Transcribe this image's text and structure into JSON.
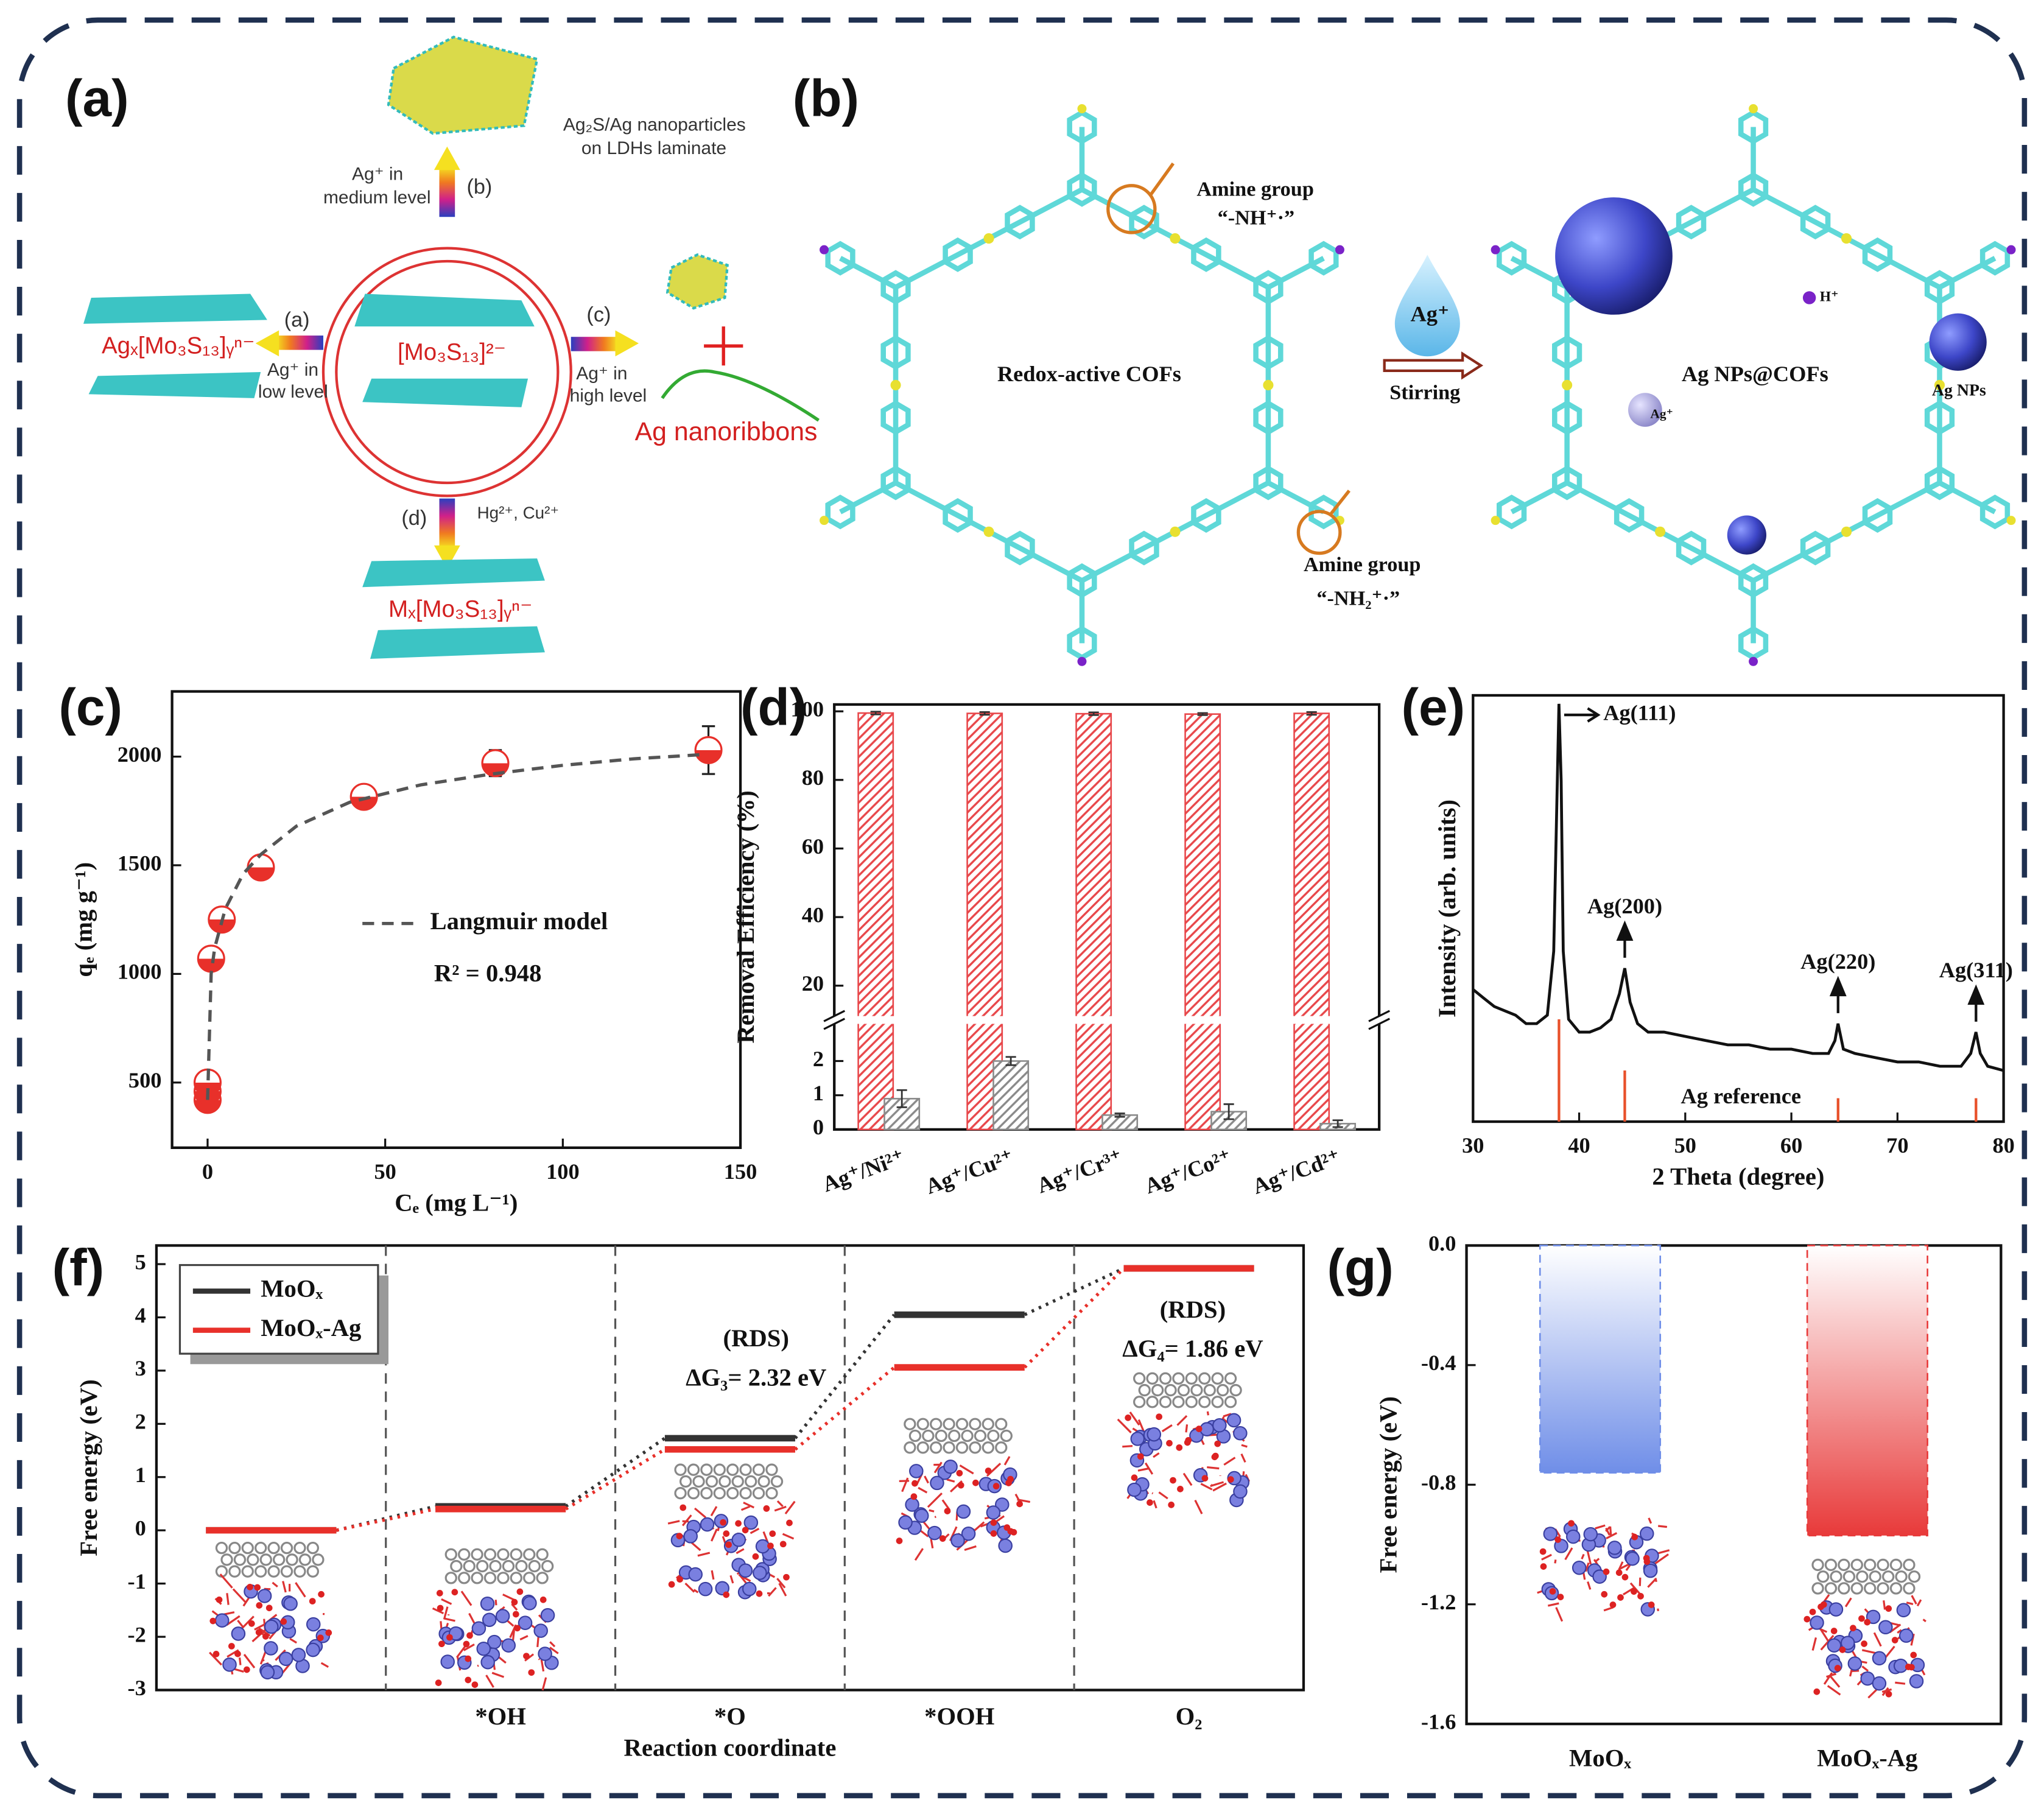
{
  "panel_a": {
    "label": "(a)",
    "product_b": [
      "Ag₂S/Ag nanoparticles",
      "on LDHs laminate"
    ],
    "route_b": {
      "tag": "(b)",
      "condition": [
        "Ag⁺ in",
        "medium level"
      ]
    },
    "route_a": {
      "tag": "(a)",
      "condition": [
        "Ag⁺ in",
        "low level"
      ]
    },
    "route_c": {
      "tag": "(c)",
      "condition": [
        "Ag⁺ in",
        "high level"
      ]
    },
    "route_d": {
      "tag": "(d)",
      "condition": [
        "Hg²⁺, Cu²⁺"
      ]
    },
    "center": "[Mo₃S₁₃]²⁻",
    "product_a": "Agₓ[Mo₃S₁₃]ᵧⁿ⁻",
    "product_c": "Ag nanoribbons",
    "product_d": "Mₓ[Mo₃S₁₃]ᵧⁿ⁻"
  },
  "panel_b": {
    "label": "(b)",
    "amine_top": [
      "Amine group",
      "“-NH⁺·”"
    ],
    "left_title": "Redox-active COFs",
    "reagent": "Ag⁺",
    "step": "Stirring",
    "right_title": "Ag NPs@COFs",
    "ion_h": "H⁺",
    "ion_ag": "Ag⁺",
    "particles": "Ag NPs",
    "amine_bottom": [
      "Amine group",
      "“-NH₂⁺·”"
    ]
  },
  "chart_data": [
    {
      "type": "scatter",
      "label": "(c)",
      "xlabel": "Cₑ (mg L⁻¹)",
      "ylabel": "qₑ (mg g⁻¹)",
      "xlim": [
        -10,
        150
      ],
      "ylim": [
        200,
        2300
      ],
      "xticks": [
        0,
        50,
        100,
        150
      ],
      "yticks": [
        500,
        1000,
        1500,
        2000
      ],
      "series": [
        {
          "color": "#e8302a",
          "x": [
            0,
            0,
            0,
            1,
            4,
            15,
            44,
            81,
            141
          ],
          "values": [
            420,
            460,
            500,
            1070,
            1250,
            1490,
            1815,
            1970,
            2030
          ],
          "errors": [
            20,
            20,
            20,
            30,
            40,
            30,
            30,
            60,
            110
          ]
        },
        {
          "name": "Langmuir model",
          "style": "dashed",
          "color": "#555555",
          "x": [
            0,
            1,
            2,
            5,
            10,
            15,
            25,
            40,
            60,
            80,
            100,
            120,
            140
          ],
          "values": [
            420,
            1000,
            1120,
            1300,
            1460,
            1550,
            1680,
            1790,
            1870,
            1920,
            1960,
            1990,
            2010
          ]
        }
      ],
      "annotations": [
        "R² = 0.948"
      ]
    },
    {
      "type": "bar",
      "label": "(d)",
      "ylabel": "Removal Efficiency (%)",
      "categories": [
        "Ag⁺/Ni²⁺",
        "Ag⁺/Cu²⁺",
        "Ag⁺/Cr³⁺",
        "Ag⁺/Co²⁺",
        "Ag⁺/Cd²⁺"
      ],
      "ylim": [
        0,
        102
      ],
      "ybreak": [
        3.2,
        10
      ],
      "yticks": [
        0,
        1,
        2,
        20,
        40,
        60,
        80,
        100
      ],
      "series": [
        {
          "color": "#e8474a",
          "pattern": "hatch",
          "values": [
            99.5,
            99.4,
            99.3,
            99.2,
            99.4
          ],
          "errors": [
            0.4,
            0.4,
            0.4,
            0.3,
            0.4
          ]
        },
        {
          "color": "#8a8a8a",
          "pattern": "hatch",
          "values": [
            0.9,
            2.0,
            0.42,
            0.52,
            0.17
          ],
          "errors": [
            0.25,
            0.12,
            0.05,
            0.22,
            0.1
          ]
        }
      ]
    },
    {
      "type": "line",
      "label": "(e)",
      "xlabel": "2 Theta (degree)",
      "ylabel": "Intensity (arb. units)",
      "xlim": [
        30,
        80
      ],
      "ylim": [
        0,
        100
      ],
      "xticks": [
        30,
        40,
        50,
        60,
        70,
        80
      ],
      "series": [
        {
          "color": "#111111",
          "x": [
            30,
            31,
            32,
            33,
            34,
            35,
            36,
            37,
            37.6,
            38.1,
            38.3,
            38.5,
            39,
            40,
            41,
            42,
            43,
            43.8,
            44.3,
            44.8,
            45.5,
            46.5,
            48,
            50,
            52,
            54,
            56,
            58,
            60,
            62,
            63.5,
            64.1,
            64.4,
            64.9,
            66,
            68,
            70,
            72,
            74,
            76,
            76.9,
            77.4,
            77.8,
            78.5,
            80
          ],
          "values": [
            31,
            29,
            27,
            26,
            25,
            23,
            23,
            25,
            40,
            98,
            80,
            40,
            24,
            21,
            21,
            22,
            24,
            30,
            36,
            28,
            23,
            21,
            21,
            20,
            19,
            18,
            18,
            17,
            17,
            16,
            16,
            19,
            23,
            17,
            16,
            15,
            14,
            14,
            13,
            13,
            16,
            21,
            16,
            13,
            12
          ]
        }
      ],
      "reference": {
        "name": "Ag reference",
        "color": "#e8502a",
        "x": [
          38.1,
          44.3,
          64.4,
          77.4
        ],
        "values": [
          24,
          12,
          5.5,
          5.5
        ]
      },
      "annotations": [
        {
          "text": "Ag(111)",
          "x": 38.1
        },
        {
          "text": "Ag(200)",
          "x": 44.3
        },
        {
          "text": "Ag(220)",
          "x": 64.4
        },
        {
          "text": "Ag(311)",
          "x": 77.4
        }
      ]
    },
    {
      "type": "step",
      "label": "(f)",
      "xlabel": "Reaction coordinate",
      "ylabel": "Free energy (eV)",
      "categories": [
        null,
        "*OH",
        "*O",
        "*OOH",
        "O₂"
      ],
      "ylim": [
        -3,
        5.35
      ],
      "yticks": [
        -3,
        -2,
        -1,
        0,
        1,
        2,
        3,
        4,
        5
      ],
      "legend": "upper left",
      "series": [
        {
          "name": "MoOₓ",
          "color": "#333333",
          "values": [
            0,
            0.45,
            1.73,
            4.05,
            4.92
          ]
        },
        {
          "name": "MoOₓ-Ag",
          "color": "#e8302a",
          "values": [
            0,
            0.4,
            1.52,
            3.06,
            4.92
          ]
        }
      ],
      "annotations": [
        {
          "text": "(RDS)",
          "color": "#222222"
        },
        {
          "text": "ΔG₃= 2.32 eV",
          "color": "#222222"
        },
        {
          "text": "(RDS)",
          "color": "#e8302a"
        },
        {
          "text": "ΔG₄= 1.86 eV",
          "color": "#e8302a"
        }
      ]
    },
    {
      "type": "bar",
      "label": "(g)",
      "ylabel": "Free energy (eV)",
      "categories": [
        "MoOₓ",
        "MoOₓ-Ag"
      ],
      "ylim": [
        -1.6,
        0
      ],
      "yticks": [
        {
          "value": 0,
          "label": "0.0"
        },
        -0.4,
        -0.8,
        -1.2,
        -1.6
      ],
      "series": [
        {
          "pattern": "gradient",
          "colors": [
            "#6f8ee8",
            "#e83a3a"
          ],
          "values": [
            -0.76,
            -0.97
          ]
        }
      ]
    }
  ]
}
